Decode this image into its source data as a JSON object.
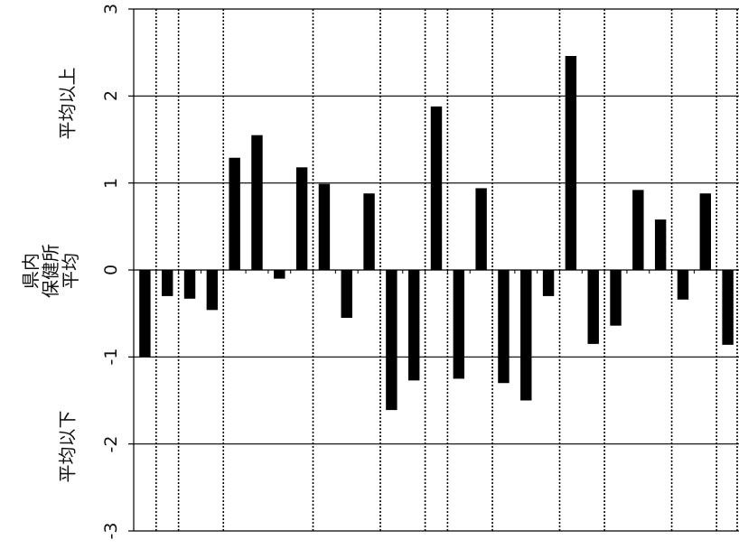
{
  "labels": {
    "above_average": "平均以上",
    "prefecture_average_line1": "県内",
    "prefecture_average_line2": "保健所",
    "prefecture_average_line3": "平均",
    "below_average": "平均以下"
  },
  "chart_data": {
    "type": "bar",
    "orientation": "vertical",
    "ylim": [
      -3,
      3
    ],
    "yticks": [
      "3",
      "2",
      "1",
      "0",
      "-1",
      "-2",
      "-3"
    ],
    "ytick_values": [
      3,
      2,
      1,
      0,
      -1,
      -2,
      -3
    ],
    "grid": "horizontal at integer values",
    "values": [
      -1.0,
      -0.3,
      -0.33,
      -0.46,
      1.29,
      1.55,
      -0.1,
      1.18,
      0.99,
      -0.55,
      0.88,
      -1.61,
      -1.27,
      1.88,
      -1.25,
      0.94,
      -1.3,
      -1.5,
      -0.3,
      2.46,
      -0.85,
      -0.64,
      0.92,
      0.58,
      -0.34,
      0.88,
      -0.86
    ],
    "group_sizes": [
      1,
      1,
      2,
      4,
      3,
      2,
      1,
      2,
      3,
      2,
      3,
      2,
      1
    ],
    "bar_color": "#000000",
    "grid_color": "#000000",
    "separator_style": "dotted"
  }
}
